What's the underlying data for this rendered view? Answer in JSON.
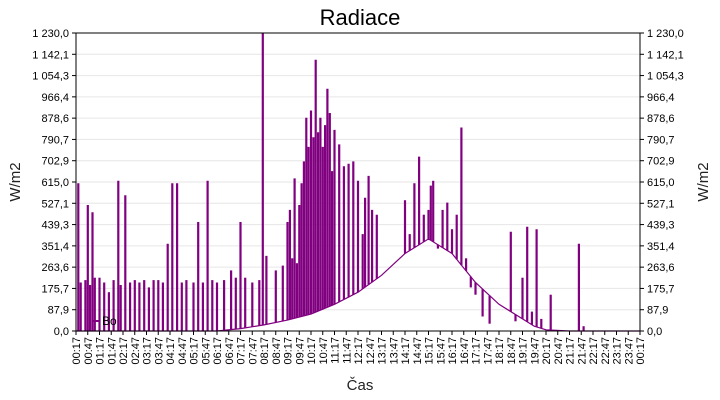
{
  "chart_data": {
    "type": "line",
    "title": "Radiace",
    "xlabel": "Čas",
    "ylabel_left": "W/m2",
    "ylabel_right": "W/m2",
    "ylim": [
      0,
      1230
    ],
    "y_ticks": [
      "0,0",
      "87,9",
      "175,7",
      "263,6",
      "351,4",
      "439,3",
      "527,1",
      "615,0",
      "702,9",
      "790,7",
      "878,6",
      "966,4",
      "1 054,3",
      "1 142,1",
      "1 230,0"
    ],
    "x_ticks": [
      "00:17",
      "00:47",
      "01:17",
      "01:47",
      "02:17",
      "02:47",
      "03:17",
      "03:47",
      "04:17",
      "04:47",
      "05:17",
      "05:47",
      "06:17",
      "06:47",
      "07:17",
      "07:47",
      "08:17",
      "08:47",
      "09:17",
      "09:47",
      "10:17",
      "10:47",
      "11:17",
      "11:47",
      "12:17",
      "12:47",
      "13:17",
      "13:47",
      "14:17",
      "14:47",
      "15:17",
      "15:47",
      "16:17",
      "16:47",
      "17:17",
      "17:47",
      "18:17",
      "18:47",
      "19:17",
      "19:47",
      "20:17",
      "20:47",
      "21:17",
      "21:47",
      "22:17",
      "22:47",
      "23:17",
      "23:47",
      "00:17"
    ],
    "grid": "horizontal",
    "legend_position": "bottom-left",
    "colors": {
      "series": "#800080",
      "grid": "#e6e6e6"
    },
    "series": [
      {
        "name": "Bo",
        "baseline": [
          [
            0,
            0
          ],
          [
            6,
            0
          ],
          [
            7,
            10
          ],
          [
            8,
            25
          ],
          [
            9,
            45
          ],
          [
            10,
            70
          ],
          [
            11,
            110
          ],
          [
            12,
            160
          ],
          [
            13,
            230
          ],
          [
            14,
            320
          ],
          [
            15,
            380
          ],
          [
            16,
            320
          ],
          [
            17,
            200
          ],
          [
            18,
            110
          ],
          [
            19,
            50
          ],
          [
            19.5,
            20
          ],
          [
            20,
            5
          ],
          [
            21,
            0
          ],
          [
            24,
            0
          ]
        ],
        "spikes": [
          [
            0.1,
            610
          ],
          [
            0.2,
            200
          ],
          [
            0.4,
            210
          ],
          [
            0.5,
            520
          ],
          [
            0.6,
            190
          ],
          [
            0.7,
            490
          ],
          [
            0.8,
            220
          ],
          [
            1.0,
            220
          ],
          [
            1.2,
            200
          ],
          [
            1.4,
            160
          ],
          [
            1.6,
            210
          ],
          [
            1.8,
            620
          ],
          [
            1.9,
            190
          ],
          [
            2.1,
            560
          ],
          [
            2.3,
            200
          ],
          [
            2.5,
            210
          ],
          [
            2.7,
            200
          ],
          [
            2.9,
            210
          ],
          [
            3.1,
            180
          ],
          [
            3.3,
            210
          ],
          [
            3.5,
            210
          ],
          [
            3.7,
            200
          ],
          [
            3.9,
            360
          ],
          [
            4.1,
            610
          ],
          [
            4.3,
            610
          ],
          [
            4.5,
            200
          ],
          [
            4.7,
            210
          ],
          [
            5.0,
            200
          ],
          [
            5.2,
            450
          ],
          [
            5.4,
            200
          ],
          [
            5.6,
            620
          ],
          [
            5.8,
            210
          ],
          [
            6.0,
            200
          ],
          [
            6.3,
            210
          ],
          [
            6.6,
            250
          ],
          [
            6.8,
            220
          ],
          [
            7.0,
            450
          ],
          [
            7.2,
            220
          ],
          [
            7.5,
            200
          ],
          [
            7.8,
            210
          ],
          [
            7.95,
            1230
          ],
          [
            8.1,
            310
          ],
          [
            8.5,
            250
          ],
          [
            8.8,
            270
          ],
          [
            9.0,
            450
          ],
          [
            9.1,
            500
          ],
          [
            9.2,
            300
          ],
          [
            9.3,
            630
          ],
          [
            9.4,
            280
          ],
          [
            9.5,
            520
          ],
          [
            9.6,
            610
          ],
          [
            9.7,
            700
          ],
          [
            9.8,
            880
          ],
          [
            9.9,
            760
          ],
          [
            10.0,
            910
          ],
          [
            10.1,
            800
          ],
          [
            10.2,
            1120
          ],
          [
            10.3,
            820
          ],
          [
            10.4,
            880
          ],
          [
            10.5,
            760
          ],
          [
            10.6,
            850
          ],
          [
            10.7,
            1000
          ],
          [
            10.8,
            900
          ],
          [
            10.9,
            660
          ],
          [
            11.0,
            830
          ],
          [
            11.2,
            770
          ],
          [
            11.4,
            680
          ],
          [
            11.6,
            690
          ],
          [
            11.8,
            700
          ],
          [
            12.0,
            620
          ],
          [
            12.2,
            400
          ],
          [
            12.3,
            550
          ],
          [
            12.45,
            640
          ],
          [
            12.6,
            500
          ],
          [
            12.8,
            480
          ],
          [
            14.0,
            540
          ],
          [
            14.2,
            400
          ],
          [
            14.4,
            610
          ],
          [
            14.6,
            720
          ],
          [
            14.8,
            480
          ],
          [
            15.0,
            500
          ],
          [
            15.1,
            600
          ],
          [
            15.2,
            620
          ],
          [
            15.4,
            340
          ],
          [
            15.6,
            500
          ],
          [
            15.8,
            530
          ],
          [
            16.0,
            420
          ],
          [
            16.2,
            480
          ],
          [
            16.4,
            840
          ],
          [
            16.6,
            300
          ],
          [
            16.8,
            180
          ],
          [
            17.0,
            150
          ],
          [
            17.3,
            60
          ],
          [
            17.6,
            30
          ],
          [
            18.5,
            410
          ],
          [
            18.7,
            40
          ],
          [
            19.0,
            220
          ],
          [
            19.2,
            430
          ],
          [
            19.4,
            80
          ],
          [
            19.6,
            420
          ],
          [
            19.8,
            50
          ],
          [
            20.2,
            150
          ],
          [
            21.4,
            360
          ],
          [
            21.6,
            20
          ]
        ]
      }
    ]
  }
}
